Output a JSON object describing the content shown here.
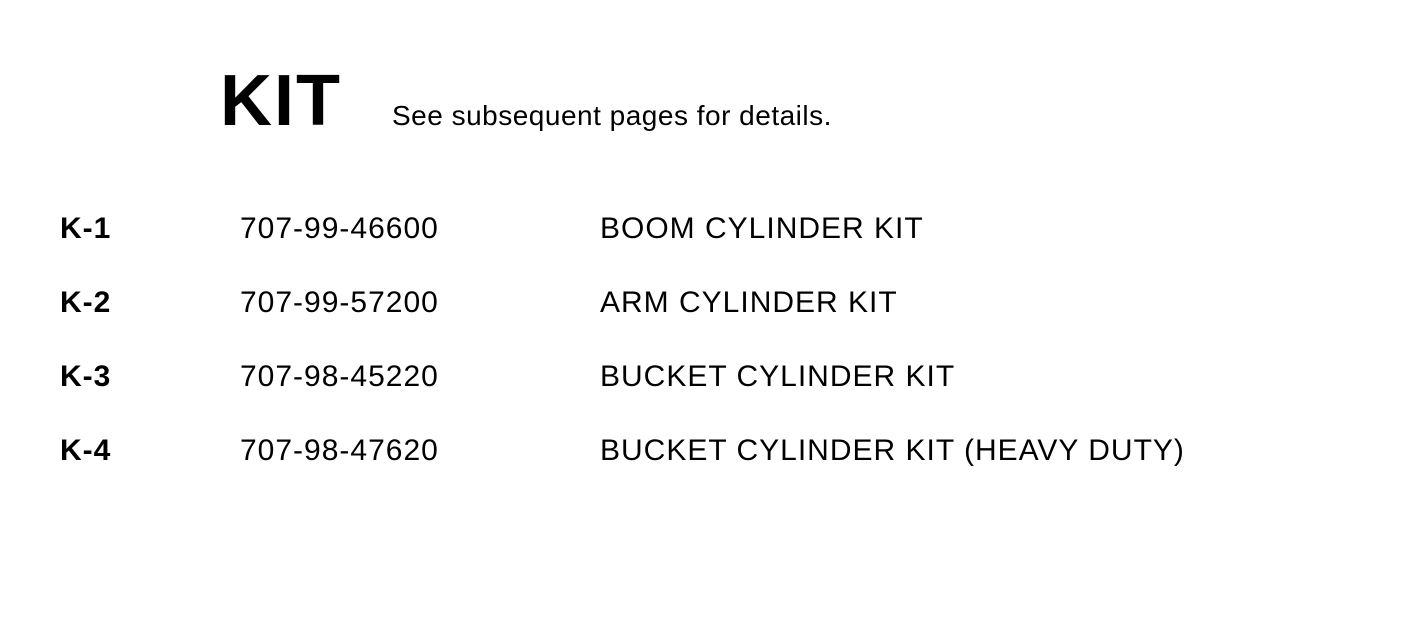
{
  "header": {
    "title": "KIT",
    "subtitle": "See subsequent pages for details."
  },
  "rows": [
    {
      "code": "K-1",
      "part": "707-99-46600",
      "desc": "BOOM CYLINDER KIT"
    },
    {
      "code": "K-2",
      "part": "707-99-57200",
      "desc": "ARM CYLINDER KIT"
    },
    {
      "code": "K-3",
      "part": "707-98-45220",
      "desc": "BUCKET CYLINDER KIT"
    },
    {
      "code": "K-4",
      "part": "707-98-47620",
      "desc": "BUCKET CYLINDER KIT (HEAVY DUTY)"
    }
  ],
  "styling": {
    "background_color": "#ffffff",
    "text_color": "#000000",
    "title_fontsize": 72,
    "title_fontweight": 900,
    "subtitle_fontsize": 28,
    "row_fontsize": 30,
    "code_fontweight": 700,
    "col_code_width": 180,
    "col_part_width": 360,
    "row_spacing": 40
  }
}
